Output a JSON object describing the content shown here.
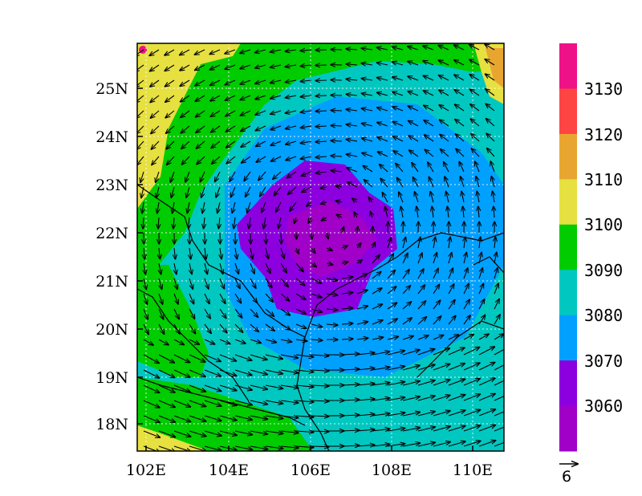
{
  "map": {
    "x_ticks": [
      "102E",
      "104E",
      "106E",
      "108E",
      "110E"
    ],
    "y_ticks": [
      "25N",
      "24N",
      "23N",
      "22N",
      "21N",
      "20N",
      "19N",
      "18N"
    ],
    "lon_range": [
      101.7,
      110.8
    ],
    "lat_range": [
      17.4,
      25.9
    ],
    "vortex_center": {
      "lon": 106.6,
      "lat": 22.0
    }
  },
  "colorbar": {
    "labels": [
      "3130",
      "3120",
      "3110",
      "3100",
      "3090",
      "3080",
      "3070",
      "3060"
    ],
    "colors": [
      "#ee1188",
      "#ff4444",
      "#e8a630",
      "#e6e040",
      "#00cc00",
      "#00c8c0",
      "#00a0ff",
      "#8c00e0",
      "#a000c8"
    ]
  },
  "reference_vector": {
    "label": "6"
  }
}
